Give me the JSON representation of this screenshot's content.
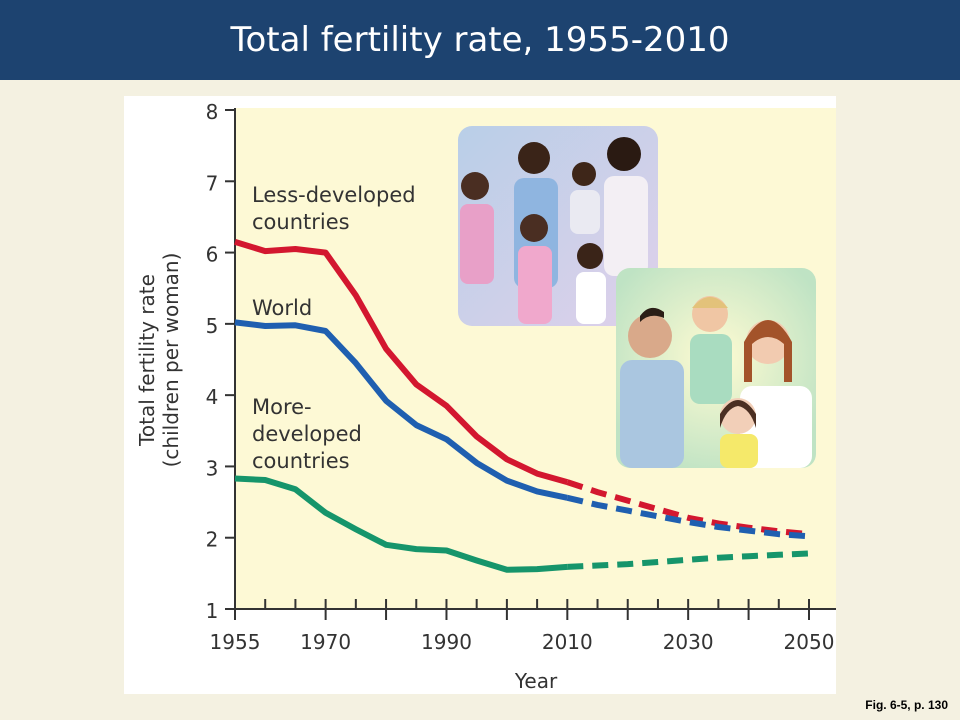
{
  "slide": {
    "title": "Total fertility rate, 1955-2010",
    "caption": "Fig. 6-5, p. 130"
  },
  "chart_data": {
    "type": "line",
    "xlabel": "Year",
    "ylabel_line1": "Total fertility rate",
    "ylabel_line2": "(children per woman)",
    "xlim": [
      1955,
      2050
    ],
    "ylim": [
      1,
      8
    ],
    "x_ticks": [
      1955,
      1970,
      1990,
      2010,
      2030,
      2050
    ],
    "y_ticks": [
      1,
      2,
      3,
      4,
      5,
      6,
      7,
      8
    ],
    "projection_start": 2010,
    "series": [
      {
        "name": "Less-developed countries",
        "label_lines": [
          "Less-developed",
          "countries"
        ],
        "color": "#d3172f",
        "x": [
          1955,
          1960,
          1965,
          1970,
          1975,
          1980,
          1985,
          1990,
          1995,
          2000,
          2005,
          2010,
          2015,
          2020,
          2025,
          2030,
          2035,
          2040,
          2045,
          2050
        ],
        "y": [
          6.15,
          6.02,
          6.05,
          6.0,
          5.4,
          4.65,
          4.15,
          3.85,
          3.42,
          3.1,
          2.9,
          2.78,
          2.64,
          2.52,
          2.4,
          2.28,
          2.2,
          2.14,
          2.09,
          2.05
        ]
      },
      {
        "name": "World",
        "label_lines": [
          "World"
        ],
        "color": "#1f5fb0",
        "x": [
          1955,
          1960,
          1965,
          1970,
          1975,
          1980,
          1985,
          1990,
          1995,
          2000,
          2005,
          2010,
          2015,
          2020,
          2025,
          2030,
          2035,
          2040,
          2045,
          2050
        ],
        "y": [
          5.02,
          4.97,
          4.98,
          4.9,
          4.45,
          3.92,
          3.58,
          3.38,
          3.05,
          2.8,
          2.65,
          2.56,
          2.46,
          2.38,
          2.3,
          2.22,
          2.15,
          2.1,
          2.05,
          2.02
        ]
      },
      {
        "name": "More-developed countries",
        "label_lines": [
          "More-",
          "developed",
          "countries"
        ],
        "color": "#16956b",
        "x": [
          1955,
          1960,
          1965,
          1970,
          1975,
          1980,
          1985,
          1990,
          1995,
          2000,
          2005,
          2010,
          2015,
          2020,
          2025,
          2030,
          2035,
          2040,
          2045,
          2050
        ],
        "y": [
          2.83,
          2.81,
          2.68,
          2.35,
          2.12,
          1.9,
          1.84,
          1.82,
          1.68,
          1.55,
          1.56,
          1.59,
          1.61,
          1.63,
          1.66,
          1.69,
          1.72,
          1.74,
          1.76,
          1.78
        ]
      }
    ]
  }
}
